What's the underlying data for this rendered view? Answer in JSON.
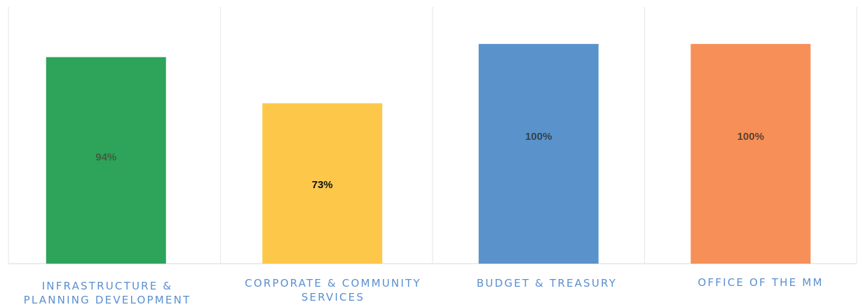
{
  "chart_data": {
    "type": "bar",
    "title": "",
    "xlabel": "",
    "ylabel": "",
    "ylim": [
      0,
      120
    ],
    "grid": "vertical separators between categories",
    "legend": "none",
    "categories": [
      "INFRASTRUCTURE &\nPLANNING DEVELOPMENT",
      "CORPORATE & COMMUNITY\nSERVICES",
      "BUDGET & TREASURY",
      "OFFICE OF THE MM"
    ],
    "values": [
      94,
      73,
      100,
      100
    ],
    "data_labels": [
      "94%",
      "73%",
      "100%",
      "100%"
    ],
    "colors": [
      "#2ea35a",
      "#fdc84a",
      "#5a93cc",
      "#f69058"
    ],
    "label_colors": [
      "#3d5f3d",
      "#111111",
      "#33414f",
      "#5a4030"
    ]
  }
}
